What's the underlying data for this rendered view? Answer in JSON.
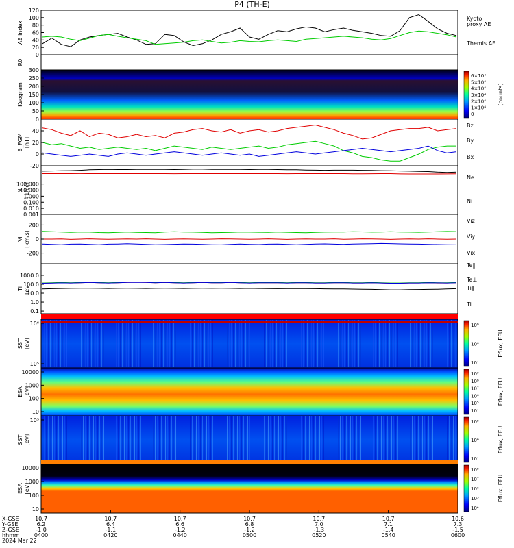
{
  "title": "P4  (TH-E)",
  "date": "2024 Mar 22",
  "colors": {
    "black": "#000000",
    "red": "#e00000",
    "green": "#00cc00",
    "blue": "#0000dd"
  },
  "chart_data": [
    {
      "type": "line",
      "panel": "ae",
      "ylabel": "AE index",
      "ylim": [
        0,
        120
      ],
      "yticks": [
        "120",
        "100",
        "80",
        "60",
        "40",
        "20",
        "0"
      ],
      "series": [
        {
          "name": "Themis AE",
          "color": "black",
          "values": [
            30,
            45,
            28,
            22,
            40,
            48,
            52,
            55,
            58,
            48,
            40,
            28,
            30,
            55,
            52,
            35,
            25,
            30,
            40,
            55,
            62,
            72,
            48,
            42,
            55,
            65,
            62,
            70,
            75,
            72,
            62,
            68,
            72,
            66,
            62,
            58,
            52,
            50,
            65,
            100,
            108,
            90,
            70,
            58,
            52
          ]
        },
        {
          "name": "Kyoto proxy AE",
          "color": "green",
          "values": [
            48,
            50,
            48,
            42,
            38,
            45,
            52,
            55,
            50,
            46,
            42,
            38,
            28,
            30,
            32,
            34,
            38,
            40,
            36,
            32,
            34,
            38,
            36,
            35,
            38,
            40,
            38,
            36,
            42,
            44,
            46,
            48,
            50,
            48,
            46,
            42,
            40,
            44,
            52,
            60,
            64,
            62,
            58,
            54,
            48
          ]
        }
      ],
      "legend": [
        {
          "text": "Kyoto",
          "color": "green"
        },
        {
          "text": "proxy AE",
          "color": "green"
        },
        {
          "text": "Themis AE",
          "color": "black"
        }
      ]
    },
    {
      "type": "heatmap",
      "panel": "r0",
      "ylabel": "R0",
      "yticks": []
    },
    {
      "type": "heatmap",
      "panel": "keogram",
      "ylabel": "Keogram",
      "ylim": [
        0,
        300
      ],
      "yticks": [
        "300",
        "250",
        "200",
        "150",
        "100",
        "50",
        "0"
      ],
      "colorbar": {
        "label": "[counts]",
        "ticks": [
          "6×10⁴",
          "5×10⁴",
          "4×10⁴",
          "3×10⁴",
          "2×10⁴",
          "1×10⁴",
          "0"
        ]
      }
    },
    {
      "type": "line",
      "panel": "bfgm",
      "ylabel": "B_FGM",
      "yunit": "[nT]",
      "ylim": [
        -20,
        60
      ],
      "yticks": [
        "40",
        "20",
        "0",
        "-20"
      ],
      "series": [
        {
          "name": "Bz",
          "color": "red",
          "values": [
            45,
            42,
            36,
            32,
            40,
            30,
            36,
            34,
            28,
            30,
            34,
            30,
            32,
            28,
            36,
            38,
            42,
            44,
            40,
            38,
            42,
            36,
            40,
            42,
            38,
            40,
            44,
            46,
            48,
            50,
            46,
            42,
            36,
            32,
            26,
            28,
            34,
            40,
            42,
            44,
            44,
            46,
            40,
            42,
            44
          ]
        },
        {
          "name": "By",
          "color": "green",
          "values": [
            20,
            16,
            18,
            14,
            10,
            12,
            8,
            10,
            12,
            10,
            8,
            10,
            6,
            10,
            14,
            12,
            10,
            8,
            12,
            10,
            8,
            10,
            12,
            14,
            10,
            12,
            16,
            18,
            20,
            22,
            18,
            14,
            6,
            2,
            -4,
            -6,
            -10,
            -12,
            -12,
            -6,
            0,
            8,
            12,
            14,
            14
          ]
        },
        {
          "name": "Bx",
          "color": "blue",
          "values": [
            2,
            0,
            -2,
            -4,
            -2,
            0,
            -2,
            -4,
            0,
            2,
            0,
            -2,
            0,
            2,
            4,
            2,
            0,
            -2,
            0,
            2,
            0,
            -2,
            0,
            -4,
            -2,
            0,
            2,
            4,
            2,
            0,
            2,
            4,
            6,
            8,
            10,
            8,
            6,
            4,
            6,
            8,
            10,
            14,
            6,
            2,
            4
          ]
        }
      ]
    },
    {
      "type": "line",
      "panel": "ni",
      "scale": "log",
      "ylabel": "Ni",
      "yunit": "[1/cc]",
      "ylim": [
        0.001,
        100000
      ],
      "yticks": [
        "100.000",
        "10.000",
        "1.000",
        "0.100",
        "0.010",
        "0.001"
      ],
      "series": [
        {
          "name": "Ne",
          "color": "red",
          "values": [
            5000,
            5000,
            5000,
            5000,
            5200,
            5100,
            5000,
            5000,
            5100,
            5000,
            5000,
            5000,
            5000,
            5000,
            4900,
            5000,
            5000,
            5000,
            5000,
            5100,
            5000,
            5000,
            5000,
            5000,
            5000,
            5000,
            4900,
            5000,
            5000,
            5000,
            5000,
            5000,
            5000,
            4800,
            4800,
            4900,
            5000,
            5000,
            4600,
            4400,
            4400,
            4500,
            4500,
            4600,
            4700
          ]
        },
        {
          "name": "Ni",
          "color": "black",
          "values": [
            13000,
            14000,
            15000,
            16000,
            18000,
            22000,
            24000,
            25000,
            24000,
            24000,
            25000,
            26000,
            26000,
            25000,
            24000,
            26000,
            28000,
            28000,
            26000,
            25000,
            26000,
            25000,
            24000,
            26000,
            25000,
            24000,
            23000,
            22000,
            20000,
            19000,
            18000,
            19000,
            19000,
            19000,
            18000,
            17000,
            16000,
            15000,
            14000,
            13000,
            12000,
            11000,
            9000,
            8000,
            9000
          ]
        }
      ]
    },
    {
      "type": "line",
      "panel": "vi",
      "ylabel": "Vi",
      "yunit": "[km/s]",
      "ylim": [
        -350,
        350
      ],
      "yticks": [
        "200",
        "0",
        "-200"
      ],
      "series": [
        {
          "name": "Viz",
          "color": "red",
          "values": [
            0,
            0,
            2,
            -4,
            0,
            4,
            0,
            -2,
            0,
            2,
            0,
            4,
            0,
            -4,
            0,
            2,
            0,
            -2,
            0,
            4,
            2,
            0,
            -2,
            0,
            4,
            0,
            -4,
            0,
            2,
            0,
            0,
            4,
            -2,
            0,
            4,
            2,
            0,
            -4,
            0,
            2,
            0,
            4,
            0,
            -2,
            0
          ]
        },
        {
          "name": "Viy",
          "color": "green",
          "values": [
            110,
            105,
            100,
            95,
            100,
            98,
            92,
            90,
            95,
            100,
            95,
            92,
            90,
            100,
            105,
            100,
            98,
            95,
            90,
            92,
            95,
            100,
            98,
            96,
            95,
            100,
            96,
            92,
            90,
            95,
            98,
            100,
            100,
            105,
            102,
            98,
            100,
            104,
            100,
            98,
            96,
            100,
            104,
            108,
            106
          ]
        },
        {
          "name": "Vix",
          "color": "blue",
          "values": [
            -70,
            -75,
            -80,
            -72,
            -70,
            -75,
            -80,
            -72,
            -70,
            -65,
            -70,
            -75,
            -80,
            -78,
            -74,
            -70,
            -72,
            -75,
            -80,
            -82,
            -76,
            -70,
            -75,
            -78,
            -72,
            -70,
            -75,
            -80,
            -76,
            -70,
            -68,
            -72,
            -75,
            -70,
            -68,
            -65,
            -62,
            -64,
            -68,
            -70,
            -72,
            -75,
            -78,
            -80,
            -82
          ]
        }
      ]
    },
    {
      "type": "line",
      "panel": "ti",
      "scale": "log",
      "ylabel": "Ti",
      "yunit": "[eV]",
      "ylim": [
        0.05,
        20000
      ],
      "yticks": [
        "1000.0",
        "100.0",
        "10.0",
        "1.0",
        "0.1"
      ],
      "series": [
        {
          "name": "Te∥",
          "color": "black",
          "values": [
            30,
            32,
            34,
            35,
            36,
            36,
            35,
            34,
            35,
            36,
            35,
            34,
            35,
            36,
            35,
            34,
            35,
            36,
            35,
            36,
            35,
            34,
            35,
            34,
            33,
            32,
            33,
            34,
            33,
            32,
            31,
            30,
            30,
            29,
            28,
            27,
            25,
            24,
            24,
            25,
            26,
            27,
            28,
            30,
            32
          ]
        },
        {
          "name": "Te⊥",
          "color": "red",
          "values": [
            130,
            140,
            150,
            140,
            150,
            160,
            150,
            140,
            150,
            160,
            170,
            160,
            150,
            160,
            150,
            140,
            150,
            160,
            150,
            150,
            160,
            150,
            140,
            150,
            150,
            150,
            140,
            150,
            150,
            140,
            140,
            150,
            150,
            140,
            140,
            150,
            140,
            130,
            130,
            140,
            140,
            150,
            140,
            140,
            150
          ]
        },
        {
          "name": "Ti∥",
          "color": "green",
          "values": [
            140,
            150,
            160,
            150,
            160,
            170,
            160,
            150,
            160,
            170,
            180,
            170,
            160,
            170,
            160,
            150,
            160,
            170,
            160,
            160,
            170,
            160,
            150,
            160,
            160,
            160,
            150,
            160,
            160,
            150,
            150,
            160,
            160,
            150,
            150,
            160,
            150,
            140,
            140,
            150,
            150,
            160,
            150,
            150,
            160
          ]
        },
        {
          "name": "Ti⊥",
          "color": "blue",
          "values": [
            130,
            135,
            145,
            140,
            150,
            160,
            150,
            140,
            150,
            160,
            165,
            160,
            150,
            160,
            150,
            140,
            150,
            160,
            150,
            150,
            160,
            150,
            140,
            150,
            150,
            150,
            140,
            150,
            150,
            140,
            140,
            150,
            150,
            140,
            140,
            150,
            140,
            130,
            130,
            140,
            140,
            150,
            145,
            140,
            150
          ]
        }
      ]
    },
    {
      "type": "heatmap",
      "panel": "sst_e",
      "ylabel": "SST",
      "yunit": "[eV]",
      "yticks": [
        "10⁶",
        "10⁵"
      ],
      "colorbar": {
        "label": "Eflux, EFU",
        "ticks": [
          "10⁸",
          "10⁶",
          "10⁴"
        ]
      }
    },
    {
      "type": "heatmap",
      "panel": "esa_e",
      "ylabel": "ESA",
      "yunit": "[eV]",
      "yticks": [
        "10000",
        "1000",
        "100",
        "10"
      ],
      "colorbar": {
        "label": "Eflux, EFU",
        "ticks": [
          "10⁹",
          "10⁸",
          "10⁷",
          "10⁶",
          "10⁵",
          "10⁴"
        ]
      }
    },
    {
      "type": "heatmap",
      "panel": "sst_i",
      "ylabel": "SST",
      "yunit": "[eV]",
      "yticks": [
        "10⁵"
      ],
      "colorbar": {
        "label": "Eflux, EFU",
        "ticks": [
          "10⁸",
          "10⁶",
          "10⁴"
        ]
      }
    },
    {
      "type": "heatmap",
      "panel": "esa_i",
      "ylabel": "ESA",
      "yunit": "[eV]",
      "yticks": [
        "10000",
        "1000",
        "100",
        "10"
      ],
      "colorbar": {
        "label": "Eflux, EFU",
        "ticks": [
          "10⁸",
          "10⁷",
          "10⁶",
          "10⁵",
          "10⁴"
        ]
      }
    }
  ],
  "xaxis": {
    "row_labels": [
      "X-GSE",
      "Y-GSE",
      "Z-GSE",
      "hhmm",
      "2024 Mar 22"
    ],
    "ticks": [
      {
        "x": "10.7",
        "y": "6.2",
        "z": "-1.0",
        "t": "0400"
      },
      {
        "x": "10.7",
        "y": "6.4",
        "z": "-1.1",
        "t": "0420"
      },
      {
        "x": "10.7",
        "y": "6.6",
        "z": "-1.2",
        "t": "0440"
      },
      {
        "x": "10.7",
        "y": "6.8",
        "z": "-1.2",
        "t": "0500"
      },
      {
        "x": "10.7",
        "y": "7.0",
        "z": "-1.3",
        "t": "0520"
      },
      {
        "x": "10.7",
        "y": "7.1",
        "z": "-1.4",
        "t": "0540"
      },
      {
        "x": "10.6",
        "y": "7.3",
        "z": "-1.5",
        "t": "0600"
      }
    ]
  }
}
